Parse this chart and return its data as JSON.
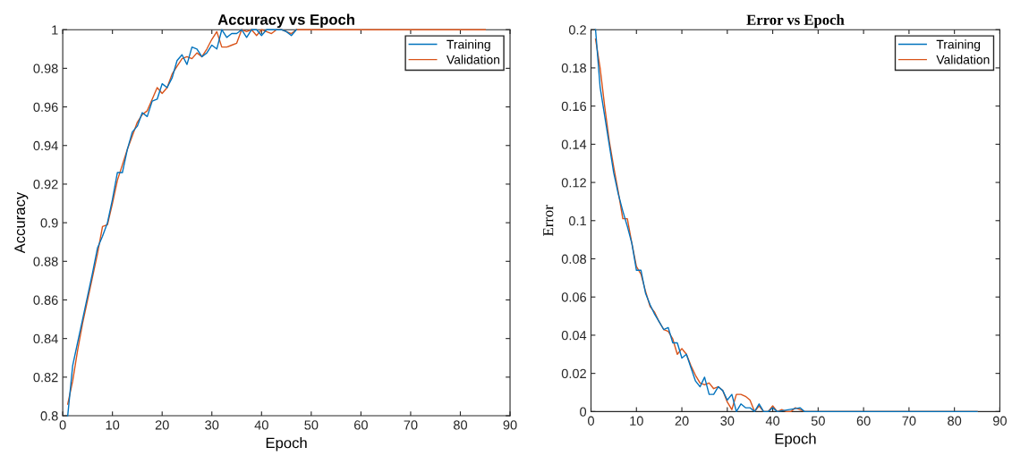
{
  "chart_data": [
    {
      "type": "line",
      "title": "Accuracy vs Epoch",
      "xlabel": "Epoch",
      "ylabel": "Accuracy",
      "xlim": [
        0,
        90
      ],
      "xticks": [
        0,
        10,
        20,
        30,
        40,
        50,
        60,
        70,
        80,
        90
      ],
      "ylim": [
        0.8,
        1
      ],
      "yticks": [
        0.8,
        0.82,
        0.84,
        0.86,
        0.88,
        0.9,
        0.92,
        0.94,
        0.96,
        0.98,
        1
      ],
      "grid": false,
      "legend": "top right",
      "series": [
        {
          "name": "Training",
          "color": "#0072bd",
          "x": [
            1,
            2,
            3,
            4,
            5,
            6,
            7,
            8,
            9,
            10,
            11,
            12,
            13,
            14,
            15,
            16,
            17,
            18,
            19,
            20,
            21,
            22,
            23,
            24,
            25,
            26,
            27,
            28,
            29,
            30,
            31,
            32,
            33,
            34,
            35,
            36,
            37,
            38,
            39,
            40,
            41,
            42,
            43,
            44,
            45,
            46,
            47
          ],
          "values": [
            0.8,
            0.826,
            0.838,
            0.85,
            0.862,
            0.874,
            0.887,
            0.893,
            0.9,
            0.912,
            0.926,
            0.926,
            0.938,
            0.947,
            0.95,
            0.957,
            0.955,
            0.963,
            0.964,
            0.972,
            0.97,
            0.975,
            0.984,
            0.987,
            0.982,
            0.991,
            0.99,
            0.986,
            0.988,
            0.992,
            0.99,
            1.0,
            0.996,
            0.998,
            0.998,
            1.0,
            0.996,
            1.0,
            1.0,
            0.997,
            1.0,
            1.0,
            1.0,
            1.0,
            0.999,
            0.997,
            1.0
          ]
        },
        {
          "name": "Validation",
          "color": "#d95319",
          "x": [
            1,
            2,
            3,
            4,
            5,
            6,
            7,
            8,
            9,
            10,
            11,
            12,
            13,
            14,
            15,
            16,
            17,
            18,
            19,
            20,
            21,
            22,
            23,
            24,
            25,
            26,
            27,
            28,
            29,
            30,
            31,
            32,
            33,
            34,
            35,
            36,
            37,
            38,
            39,
            40,
            41,
            42,
            43,
            44,
            45,
            46,
            47,
            85
          ],
          "values": [
            0.806,
            0.818,
            0.834,
            0.848,
            0.86,
            0.872,
            0.884,
            0.898,
            0.899,
            0.91,
            0.922,
            0.93,
            0.938,
            0.945,
            0.952,
            0.956,
            0.958,
            0.964,
            0.97,
            0.967,
            0.97,
            0.977,
            0.981,
            0.985,
            0.986,
            0.985,
            0.988,
            0.986,
            0.99,
            0.995,
            0.999,
            0.991,
            0.991,
            0.992,
            0.993,
            1.0,
            0.999,
            1.0,
            0.997,
            1.0,
            0.999,
            0.998,
            1.0,
            1.0,
            0.999,
            0.998,
            1.0,
            1.0
          ]
        }
      ]
    },
    {
      "type": "line",
      "title": "Error vs Epoch",
      "xlabel": "Epoch",
      "ylabel": "Error",
      "xlim": [
        0,
        90
      ],
      "xticks": [
        0,
        10,
        20,
        30,
        40,
        50,
        60,
        70,
        80,
        90
      ],
      "ylim": [
        0,
        0.2
      ],
      "yticks": [
        0,
        0.02,
        0.04,
        0.06,
        0.08,
        0.1,
        0.12,
        0.14,
        0.16,
        0.18,
        0.2
      ],
      "grid": false,
      "legend": "top right",
      "series": [
        {
          "name": "Training",
          "color": "#0072bd",
          "x": [
            1,
            2,
            3,
            4,
            5,
            6,
            7,
            8,
            9,
            10,
            11,
            12,
            13,
            14,
            15,
            16,
            17,
            18,
            19,
            20,
            21,
            22,
            23,
            24,
            25,
            26,
            27,
            28,
            29,
            30,
            31,
            32,
            33,
            34,
            35,
            36,
            37,
            38,
            39,
            40,
            41,
            46,
            47,
            85
          ],
          "values": [
            0.2,
            0.17,
            0.155,
            0.14,
            0.125,
            0.114,
            0.105,
            0.097,
            0.088,
            0.074,
            0.074,
            0.062,
            0.056,
            0.051,
            0.047,
            0.043,
            0.044,
            0.036,
            0.036,
            0.028,
            0.03,
            0.023,
            0.016,
            0.013,
            0.018,
            0.009,
            0.009,
            0.013,
            0.011,
            0.006,
            0.009,
            0.0,
            0.004,
            0.002,
            0.002,
            0.0,
            0.004,
            0.0,
            0.0,
            0.002,
            0.0,
            0.002,
            0.0,
            0.0
          ]
        },
        {
          "name": "Validation",
          "color": "#d95319",
          "x": [
            1,
            2,
            3,
            4,
            5,
            6,
            7,
            8,
            9,
            10,
            11,
            12,
            13,
            14,
            15,
            16,
            17,
            18,
            19,
            20,
            21,
            22,
            23,
            24,
            25,
            26,
            27,
            28,
            29,
            30,
            31,
            32,
            33,
            34,
            35,
            36,
            37,
            38,
            39,
            40,
            41,
            42,
            43,
            44,
            45,
            46,
            47,
            85
          ],
          "values": [
            0.195,
            0.18,
            0.16,
            0.142,
            0.128,
            0.115,
            0.101,
            0.101,
            0.088,
            0.076,
            0.072,
            0.063,
            0.055,
            0.052,
            0.047,
            0.043,
            0.042,
            0.038,
            0.03,
            0.033,
            0.03,
            0.024,
            0.019,
            0.015,
            0.014,
            0.015,
            0.012,
            0.013,
            0.011,
            0.005,
            0.001,
            0.009,
            0.009,
            0.008,
            0.006,
            0.0,
            0.003,
            0.0,
            0.0,
            0.003,
            0.0,
            0.001,
            0.0,
            0.0,
            0.002,
            0.001,
            0.0,
            0.0
          ]
        }
      ]
    }
  ]
}
